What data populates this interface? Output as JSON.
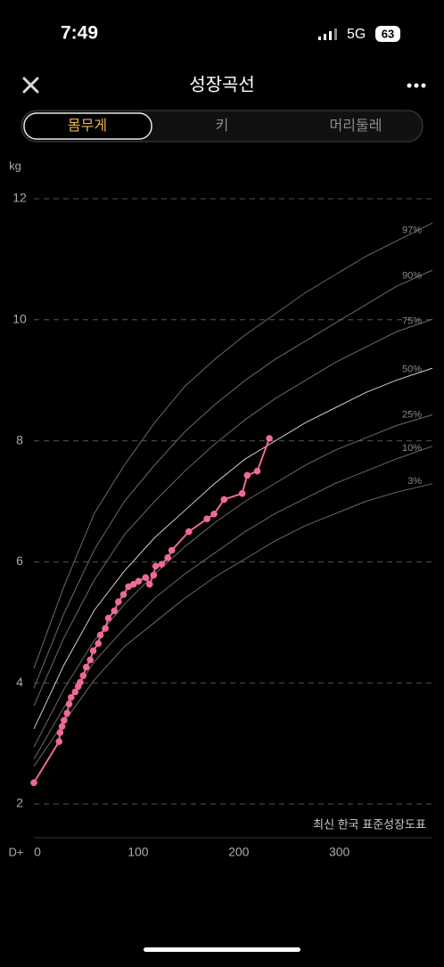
{
  "status_bar": {
    "time": "7:49",
    "network": "5G",
    "battery": "63"
  },
  "header": {
    "title": "성장곡선"
  },
  "tabs": [
    "몸무게",
    "키",
    "머리둘레"
  ],
  "chart_data": {
    "type": "line",
    "y_label": "kg",
    "x_label": "D+",
    "source_note": "최신 한국 표준성장도표",
    "xlim": [
      0,
      396
    ],
    "ylim": [
      2,
      12
    ],
    "xticks": [
      0,
      100,
      200,
      300
    ],
    "yticks": [
      2,
      4,
      6,
      8,
      10,
      12
    ],
    "grid": true,
    "series": [
      {
        "name": "97%",
        "color": "#6a6a6a",
        "x": [
          0,
          30,
          60,
          90,
          120,
          150,
          180,
          210,
          240,
          270,
          300,
          330,
          360,
          396
        ],
        "values": [
          4.24,
          5.6,
          6.8,
          7.6,
          8.3,
          8.9,
          9.35,
          9.75,
          10.1,
          10.45,
          10.75,
          11.05,
          11.3,
          11.6
        ]
      },
      {
        "name": "90%",
        "color": "#6a6a6a",
        "x": [
          0,
          30,
          60,
          90,
          120,
          150,
          180,
          210,
          240,
          270,
          300,
          330,
          360,
          396
        ],
        "values": [
          3.91,
          5.15,
          6.2,
          7.0,
          7.6,
          8.15,
          8.6,
          9.0,
          9.35,
          9.65,
          9.95,
          10.25,
          10.55,
          10.82
        ]
      },
      {
        "name": "75%",
        "color": "#6a6a6a",
        "x": [
          0,
          30,
          60,
          90,
          120,
          150,
          180,
          210,
          240,
          270,
          300,
          330,
          360,
          396
        ],
        "values": [
          3.62,
          4.75,
          5.7,
          6.45,
          7.0,
          7.5,
          7.95,
          8.35,
          8.7,
          9.0,
          9.3,
          9.55,
          9.8,
          10.01
        ]
      },
      {
        "name": "50%",
        "color": "#cfcfcf",
        "x": [
          0,
          30,
          60,
          90,
          120,
          150,
          180,
          210,
          240,
          270,
          300,
          330,
          360,
          396
        ],
        "values": [
          3.24,
          4.3,
          5.2,
          5.85,
          6.4,
          6.85,
          7.3,
          7.7,
          8.0,
          8.3,
          8.55,
          8.8,
          9.0,
          9.2
        ]
      },
      {
        "name": "25%",
        "color": "#6a6a6a",
        "x": [
          0,
          30,
          60,
          90,
          120,
          150,
          180,
          210,
          240,
          270,
          300,
          330,
          360,
          396
        ],
        "values": [
          2.94,
          3.9,
          4.7,
          5.3,
          5.8,
          6.25,
          6.65,
          7.0,
          7.3,
          7.6,
          7.85,
          8.05,
          8.25,
          8.43
        ]
      },
      {
        "name": "10%",
        "color": "#6a6a6a",
        "x": [
          0,
          30,
          60,
          90,
          120,
          150,
          180,
          210,
          240,
          270,
          300,
          330,
          360,
          396
        ],
        "values": [
          2.74,
          3.6,
          4.35,
          4.9,
          5.4,
          5.8,
          6.15,
          6.5,
          6.8,
          7.05,
          7.3,
          7.5,
          7.7,
          7.91
        ]
      },
      {
        "name": "3%",
        "color": "#6a6a6a",
        "x": [
          0,
          30,
          60,
          90,
          120,
          150,
          180,
          210,
          240,
          270,
          300,
          330,
          360,
          396
        ],
        "values": [
          2.62,
          3.35,
          4.05,
          4.6,
          5.0,
          5.4,
          5.75,
          6.05,
          6.35,
          6.6,
          6.8,
          7.0,
          7.15,
          7.29
        ]
      },
      {
        "color": "#ee6a97",
        "markers": true,
        "x": [
          0,
          25,
          26,
          28,
          30,
          33,
          35,
          37,
          41,
          44,
          46,
          49,
          52,
          56,
          59,
          64,
          66,
          71,
          74,
          80,
          84,
          89,
          94,
          99,
          104,
          111,
          115,
          119,
          121,
          127,
          133,
          137,
          154,
          172,
          179,
          189,
          207,
          212,
          222,
          234
        ],
        "values": [
          2.35,
          3.03,
          3.18,
          3.28,
          3.38,
          3.5,
          3.65,
          3.76,
          3.85,
          3.94,
          4.01,
          4.12,
          4.26,
          4.38,
          4.53,
          4.65,
          4.79,
          4.9,
          5.07,
          5.19,
          5.34,
          5.46,
          5.59,
          5.63,
          5.68,
          5.74,
          5.63,
          5.78,
          5.93,
          5.96,
          6.07,
          6.19,
          6.5,
          6.71,
          6.79,
          7.03,
          7.13,
          7.43,
          7.5,
          8.04
        ]
      }
    ]
  }
}
